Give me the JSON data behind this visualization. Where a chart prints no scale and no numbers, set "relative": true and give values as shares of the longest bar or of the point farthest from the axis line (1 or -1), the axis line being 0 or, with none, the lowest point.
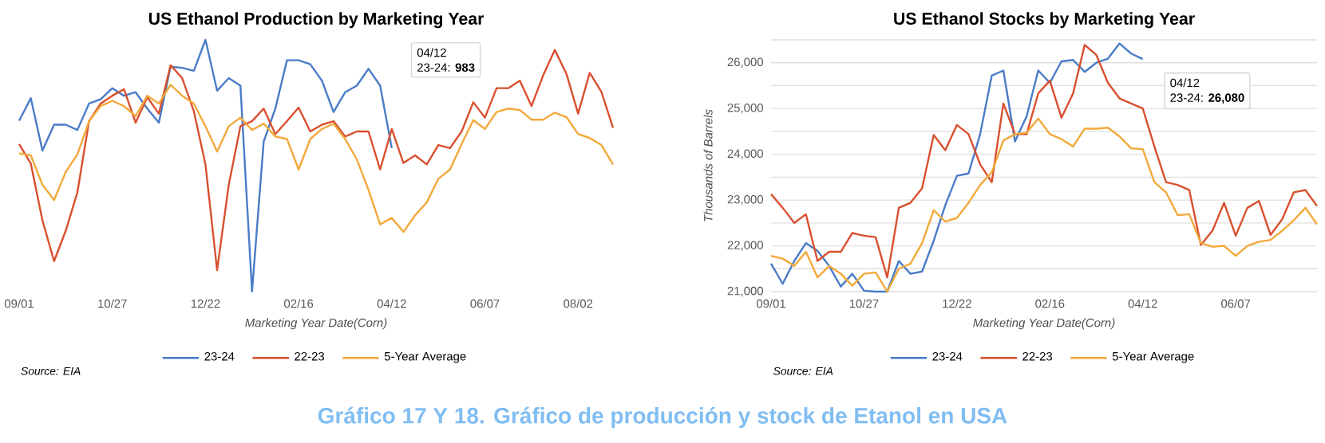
{
  "chart_data": [
    {
      "type": "line",
      "title": "US Ethanol Production by Marketing Year",
      "xlabel": "Marketing Year Date(Corn)",
      "relative": true,
      "legend": "bottom",
      "categories": [
        "09/01",
        null,
        null,
        null,
        null,
        null,
        null,
        null,
        "10/27",
        null,
        null,
        null,
        null,
        null,
        null,
        null,
        "12/22",
        null,
        null,
        null,
        null,
        null,
        null,
        null,
        "02/16",
        null,
        null,
        null,
        null,
        null,
        null,
        null,
        "04/12",
        null,
        null,
        null,
        null,
        null,
        null,
        null,
        "06/07",
        null,
        null,
        null,
        null,
        null,
        null,
        null,
        "08/02",
        null,
        null,
        null
      ],
      "series": [
        {
          "name": "23-24",
          "color": "#4a7cc7",
          "values": [
            0.679,
            0.768,
            0.56,
            0.663,
            0.663,
            0.642,
            0.747,
            0.764,
            0.808,
            0.778,
            0.792,
            0.727,
            0.671,
            0.893,
            0.889,
            0.877,
            1.0,
            0.798,
            0.848,
            0.818,
            0,
            0.596,
            0.727,
            0.919,
            0.919,
            0.903,
            0.838,
            0.713,
            0.792,
            0.818,
            0.885,
            0.818,
            0.57,
            null,
            null,
            null,
            null,
            null,
            null,
            null,
            null,
            null,
            null,
            null,
            null,
            null,
            null,
            null,
            null,
            null,
            null,
            null
          ]
        },
        {
          "name": "22-23",
          "color": "#d9502f",
          "values": [
            0.586,
            0.509,
            0.283,
            0.121,
            0.242,
            0.394,
            0.677,
            0.747,
            0.778,
            0.804,
            0.671,
            0.772,
            0.707,
            0.899,
            0.848,
            0.717,
            0.505,
            0.085,
            0.424,
            0.657,
            0.677,
            0.727,
            0.626,
            0.677,
            0.731,
            0.636,
            0.663,
            0.677,
            0.616,
            0.636,
            0.636,
            0.485,
            0.646,
            0.511,
            0.541,
            0.505,
            0.582,
            0.57,
            0.636,
            0.752,
            0.691,
            0.808,
            0.808,
            0.838,
            0.737,
            0.859,
            0.96,
            0.865,
            0.707,
            0.869,
            0.794,
            0.651
          ]
        },
        {
          "name": "5-Year Average",
          "color": "#f2a93b",
          "values": [
            0.549,
            0.541,
            0.424,
            0.364,
            0.475,
            0.545,
            0.677,
            0.737,
            0.758,
            0.737,
            0.697,
            0.778,
            0.747,
            0.822,
            0.778,
            0.747,
            0.657,
            0.556,
            0.657,
            0.691,
            0.642,
            0.667,
            0.616,
            0.606,
            0.485,
            0.606,
            0.646,
            0.667,
            0.606,
            0.525,
            0.404,
            0.267,
            0.293,
            0.237,
            0.303,
            0.354,
            0.448,
            0.485,
            0.586,
            0.681,
            0.646,
            0.713,
            0.727,
            0.721,
            0.683,
            0.683,
            0.711,
            0.693,
            0.626,
            0.61,
            0.582,
            0.505
          ]
        }
      ],
      "annotations": [
        "Source: EIA",
        "04/12",
        "23-24: **983**"
      ]
    },
    {
      "type": "line",
      "title": "US Ethanol Stocks by Marketing Year",
      "xlabel": "Marketing Year Date(Corn)",
      "ylabel": "Thousands of Barrels",
      "legend": "bottom",
      "grid": "y",
      "ylim": [
        21000,
        26500
      ],
      "yticks": [
        {
          "value": 21000,
          "label": "21,000"
        },
        {
          "value": 21500,
          "label": null
        },
        {
          "value": 22000,
          "label": "22,000"
        },
        {
          "value": 22500,
          "label": null
        },
        {
          "value": 23000,
          "label": "23,000"
        },
        {
          "value": 23500,
          "label": null
        },
        {
          "value": 24000,
          "label": "24,000"
        },
        {
          "value": 24500,
          "label": null
        },
        {
          "value": 25000,
          "label": "25,000"
        },
        {
          "value": 25500,
          "label": null
        },
        {
          "value": 26000,
          "label": "26,000"
        },
        {
          "value": 26500,
          "label": null
        }
      ],
      "categories": [
        "09/01",
        null,
        null,
        null,
        null,
        null,
        null,
        null,
        "10/27",
        null,
        null,
        null,
        null,
        null,
        null,
        null,
        "12/22",
        null,
        null,
        null,
        null,
        null,
        null,
        null,
        "02/16",
        null,
        null,
        null,
        null,
        null,
        null,
        null,
        "04/12",
        null,
        null,
        null,
        null,
        null,
        null,
        null,
        "06/07",
        null,
        null,
        null,
        null,
        null,
        null,
        null
      ],
      "series": [
        {
          "name": "23-24",
          "color": "#4a7cc7",
          "values": [
            21610,
            21170,
            21670,
            22060,
            21890,
            21560,
            21110,
            21390,
            21020,
            21000,
            21000,
            21670,
            21390,
            21440,
            22110,
            22890,
            23530,
            23580,
            24440,
            25720,
            25830,
            24280,
            24830,
            25830,
            25560,
            26030,
            26060,
            25800,
            26000,
            26090,
            26420,
            26200,
            26080,
            null,
            null,
            null,
            null,
            null,
            null,
            null,
            null,
            null,
            null,
            null,
            null,
            null,
            null,
            null
          ]
        },
        {
          "name": "22-23",
          "color": "#d9502f",
          "values": [
            23130,
            22830,
            22500,
            22690,
            21670,
            21870,
            21870,
            22280,
            22220,
            22190,
            21310,
            22830,
            22940,
            23260,
            24420,
            24090,
            24640,
            24440,
            23780,
            23390,
            25110,
            24440,
            24440,
            25330,
            25610,
            24800,
            25330,
            26390,
            26170,
            25560,
            25220,
            25110,
            25000,
            24170,
            23390,
            23330,
            23220,
            22020,
            22330,
            22940,
            22220,
            22830,
            22980,
            22240,
            22580,
            23170,
            23220,
            22870
          ]
        },
        {
          "name": "5-Year Average",
          "color": "#f2a93b",
          "values": [
            21780,
            21720,
            21560,
            21870,
            21310,
            21560,
            21390,
            21130,
            21390,
            21420,
            21000,
            21500,
            21610,
            22060,
            22780,
            22530,
            22610,
            22940,
            23330,
            23610,
            24300,
            24440,
            24470,
            24780,
            24440,
            24330,
            24170,
            24560,
            24560,
            24580,
            24390,
            24130,
            24110,
            23390,
            23170,
            22670,
            22690,
            22060,
            21980,
            22000,
            21780,
            22000,
            22090,
            22130,
            22330,
            22560,
            22830,
            22470
          ]
        }
      ],
      "annotations": [
        "Source: EIA",
        "04/12",
        "23-24: **26,080**"
      ]
    },
    {
      "type": "other",
      "title": "Gráfico 17 Y 18. Gráfico de producción y stock de Etanol en USA"
    }
  ]
}
